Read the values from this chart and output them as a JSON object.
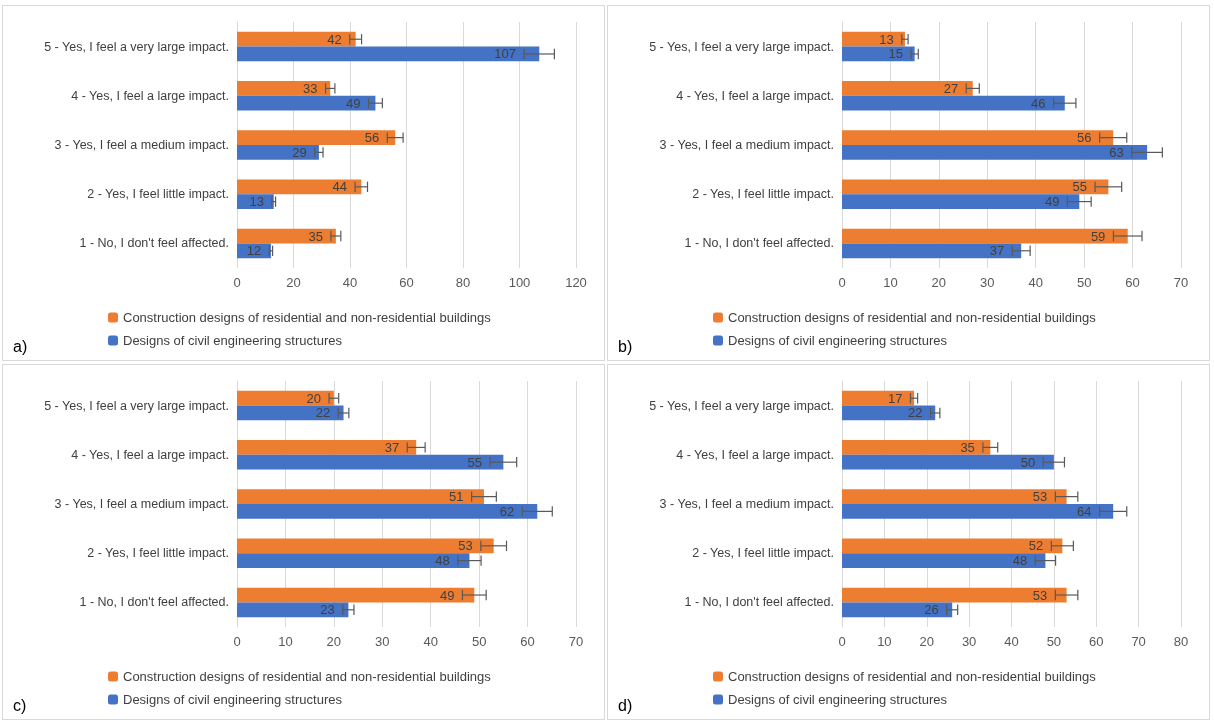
{
  "chart_data": [
    {
      "type": "bar",
      "orientation": "horizontal",
      "categories": [
        "5 - Yes, I feel a very large impact.",
        "4 - Yes, I feel a large impact.",
        "3 - Yes, I feel a medium impact.",
        "2 - Yes, I feel little impact.",
        "1 - No, I don't feel affected."
      ],
      "series": [
        {
          "name": "Construction designs of residential and non-residential buildings",
          "color": "#ed7d31",
          "values": [
            42,
            33,
            56,
            44,
            35
          ],
          "errors": [
            2.1,
            1.65,
            2.8,
            2.2,
            1.75
          ]
        },
        {
          "name": "Designs of civil engineering structures",
          "color": "#4472c4",
          "values": [
            107,
            49,
            29,
            13,
            12
          ],
          "errors": [
            5.35,
            2.45,
            1.45,
            0.65,
            0.6
          ]
        }
      ],
      "xlim": [
        0,
        120
      ],
      "xticks": [
        0,
        20,
        40,
        60,
        80,
        100,
        120
      ],
      "grid": "x",
      "legend": "bottom",
      "data_labels": true,
      "annotations": [
        "a)"
      ]
    },
    {
      "type": "bar",
      "orientation": "horizontal",
      "categories": [
        "5 - Yes, I feel a very large impact.",
        "4 - Yes, I feel a large impact.",
        "3 - Yes, I feel a medium impact.",
        "2 - Yes, I feel little impact.",
        "1 - No, I don't feel affected."
      ],
      "series": [
        {
          "name": "Construction designs of residential and non-residential buildings",
          "color": "#ed7d31",
          "values": [
            13,
            27,
            56,
            55,
            59
          ],
          "errors": [
            0.65,
            1.35,
            2.8,
            2.75,
            2.95
          ]
        },
        {
          "name": "Designs of civil engineering structures",
          "color": "#4472c4",
          "values": [
            15,
            46,
            63,
            49,
            37
          ],
          "errors": [
            0.75,
            2.3,
            3.15,
            2.45,
            1.85
          ]
        }
      ],
      "xlim": [
        0,
        70
      ],
      "xticks": [
        0,
        10,
        20,
        30,
        40,
        50,
        60,
        70
      ],
      "grid": "x",
      "legend": "bottom",
      "data_labels": true,
      "annotations": [
        "b)"
      ]
    },
    {
      "type": "bar",
      "orientation": "horizontal",
      "categories": [
        "5 - Yes, I feel a very large impact.",
        "4 - Yes, I feel a large impact.",
        "3 - Yes, I feel a medium impact.",
        "2 - Yes, I feel little impact.",
        "1 - No, I don't feel affected."
      ],
      "series": [
        {
          "name": "Construction designs of residential and non-residential buildings",
          "color": "#ed7d31",
          "values": [
            20,
            37,
            51,
            53,
            49
          ],
          "errors": [
            1,
            1.85,
            2.55,
            2.65,
            2.45
          ]
        },
        {
          "name": "Designs of civil engineering structures",
          "color": "#4472c4",
          "values": [
            22,
            55,
            62,
            48,
            23
          ],
          "errors": [
            1.1,
            2.75,
            3.1,
            2.4,
            1.15
          ]
        }
      ],
      "xlim": [
        0,
        70
      ],
      "xticks": [
        0,
        10,
        20,
        30,
        40,
        50,
        60,
        70
      ],
      "grid": "x",
      "legend": "bottom",
      "data_labels": true,
      "annotations": [
        "c)"
      ]
    },
    {
      "type": "bar",
      "orientation": "horizontal",
      "categories": [
        "5 - Yes, I feel a very large impact.",
        "4 - Yes, I feel a large impact.",
        "3 - Yes, I feel a medium impact.",
        "2 - Yes, I feel little impact.",
        "1 - No, I don't feel affected."
      ],
      "series": [
        {
          "name": "Construction designs of residential and non-residential buildings",
          "color": "#ed7d31",
          "values": [
            17,
            35,
            53,
            52,
            53
          ],
          "errors": [
            0.85,
            1.75,
            2.65,
            2.6,
            2.65
          ]
        },
        {
          "name": "Designs of civil engineering structures",
          "color": "#4472c4",
          "values": [
            22,
            50,
            64,
            48,
            26
          ],
          "errors": [
            1.1,
            2.5,
            3.2,
            2.4,
            1.3
          ]
        }
      ],
      "xlim": [
        0,
        80
      ],
      "xticks": [
        0,
        10,
        20,
        30,
        40,
        50,
        60,
        70,
        80
      ],
      "grid": "x",
      "legend": "bottom",
      "data_labels": true,
      "annotations": [
        "d)"
      ]
    }
  ]
}
